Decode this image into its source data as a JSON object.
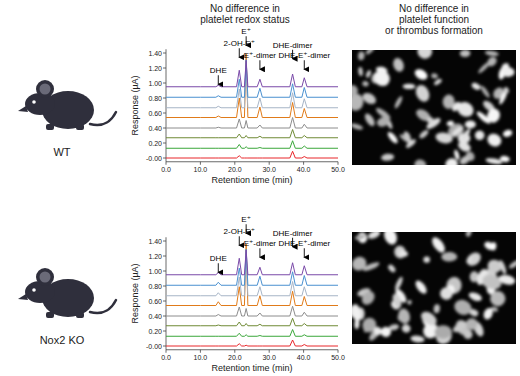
{
  "headers": [
    [
      "No difference in",
      "platelet redox status"
    ],
    [
      "No difference in",
      "platelet function",
      "or thrombus formation"
    ]
  ],
  "row_labels": [
    "WT",
    "Nox2 KO"
  ],
  "chart_data": [
    {
      "type": "line",
      "x_label": "Retention time (min)",
      "y_label": "Response (µA)",
      "xlim": [
        0,
        50
      ],
      "ylim": [
        -0.05,
        1.45
      ],
      "xticks": [
        {
          "value": 0,
          "label": "0.0"
        },
        {
          "value": 10,
          "label": "10.0"
        },
        {
          "value": 20,
          "label": "20.0"
        },
        {
          "value": 30,
          "label": "30.0"
        },
        {
          "value": 40,
          "label": "40.0"
        },
        {
          "value": 50,
          "label": "50.0"
        }
      ],
      "yticks": [
        {
          "value": 0,
          "label": "-0.00"
        },
        {
          "value": 0.2,
          "label": "0.20"
        },
        {
          "value": 0.4,
          "label": "0.40"
        },
        {
          "value": 0.6,
          "label": "0.60"
        },
        {
          "value": 0.8,
          "label": "0.80"
        },
        {
          "value": 1.0,
          "label": "1.00"
        },
        {
          "value": 1.2,
          "label": "1.20"
        },
        {
          "value": 1.4,
          "label": "1.40"
        }
      ],
      "x": [
        0,
        10,
        14.5,
        15.2,
        16,
        20.5,
        21.3,
        22,
        22.8,
        23.3,
        23.8,
        26.5,
        27.3,
        28,
        36,
        36.8,
        37.6,
        39.5,
        40.2,
        41,
        50
      ],
      "series": [
        {
          "color": "#e8262a",
          "values": [
            0,
            0,
            0,
            0,
            0,
            0,
            0.03,
            0,
            0,
            0,
            0,
            0,
            0,
            0,
            0,
            0.09,
            0,
            0,
            0.02,
            0,
            0
          ]
        },
        {
          "color": "#3aa63a",
          "values": [
            0.13,
            0.13,
            0.13,
            0.13,
            0.13,
            0.13,
            0.18,
            0.13,
            0.13,
            0.15,
            0.13,
            0.13,
            0.14,
            0.13,
            0.13,
            0.23,
            0.13,
            0.13,
            0.16,
            0.13,
            0.13
          ]
        },
        {
          "color": "#6f8a35",
          "values": [
            0.27,
            0.27,
            0.27,
            0.27,
            0.27,
            0.27,
            0.32,
            0.27,
            0.27,
            0.3,
            0.27,
            0.27,
            0.29,
            0.27,
            0.27,
            0.38,
            0.27,
            0.27,
            0.3,
            0.27,
            0.27
          ]
        },
        {
          "color": "#8c8c8c",
          "values": [
            0.4,
            0.4,
            0.4,
            0.41,
            0.4,
            0.4,
            0.52,
            0.4,
            0.4,
            0.5,
            0.4,
            0.4,
            0.44,
            0.4,
            0.4,
            0.54,
            0.4,
            0.4,
            0.45,
            0.4,
            0.4
          ]
        },
        {
          "color": "#e07b1a",
          "values": [
            0.54,
            0.54,
            0.54,
            0.56,
            0.54,
            0.54,
            0.8,
            0.54,
            0.54,
            1.39,
            0.54,
            0.54,
            0.68,
            0.54,
            0.54,
            0.74,
            0.54,
            0.54,
            0.66,
            0.54,
            0.54
          ]
        },
        {
          "color": "#a6b4c6",
          "values": [
            0.67,
            0.67,
            0.67,
            0.69,
            0.67,
            0.67,
            0.92,
            0.67,
            0.67,
            1.22,
            0.67,
            0.67,
            0.8,
            0.67,
            0.67,
            0.87,
            0.67,
            0.67,
            0.79,
            0.67,
            0.67
          ]
        },
        {
          "color": "#4a90d0",
          "values": [
            0.81,
            0.81,
            0.81,
            0.83,
            0.81,
            0.81,
            1.05,
            0.81,
            0.81,
            1.31,
            0.81,
            0.81,
            0.93,
            0.81,
            0.81,
            0.99,
            0.81,
            0.81,
            0.94,
            0.81,
            0.81
          ]
        },
        {
          "color": "#7a4aa8",
          "values": [
            0.95,
            0.95,
            0.95,
            0.97,
            0.95,
            0.95,
            1.17,
            0.95,
            0.95,
            1.3,
            0.95,
            0.95,
            1.05,
            0.95,
            0.95,
            1.12,
            0.95,
            0.95,
            1.07,
            0.95,
            0.95
          ]
        }
      ],
      "annotations": [
        {
          "text": "DHE",
          "x": 15.2,
          "y": 0.97
        },
        {
          "text": "2-OH-E⁺",
          "x": 21.3,
          "y": 1.33
        },
        {
          "text": "E⁺",
          "x": 23.3,
          "y": 1.49
        },
        {
          "text": "E⁺-dimer",
          "x": 27.3,
          "y": 1.17
        },
        {
          "text": "DHE-dimer",
          "x": 36.8,
          "y": 1.31
        },
        {
          "text": "DHE-E⁺-dimer",
          "x": 40.2,
          "y": 1.17
        }
      ]
    },
    {
      "type": "line",
      "x_label": "Retention time (min)",
      "y_label": "Response (µA)",
      "xlim": [
        0,
        50
      ],
      "ylim": [
        -0.05,
        1.45
      ],
      "xticks": [
        {
          "value": 0,
          "label": "0.0"
        },
        {
          "value": 10,
          "label": "10.0"
        },
        {
          "value": 20,
          "label": "20.0"
        },
        {
          "value": 30,
          "label": "30.0"
        },
        {
          "value": 40,
          "label": "40.0"
        },
        {
          "value": 50,
          "label": "50.0"
        }
      ],
      "yticks": [
        {
          "value": 0,
          "label": "-0.00"
        },
        {
          "value": 0.2,
          "label": "0.20"
        },
        {
          "value": 0.4,
          "label": "0.40"
        },
        {
          "value": 0.6,
          "label": "0.60"
        },
        {
          "value": 0.8,
          "label": "0.80"
        },
        {
          "value": 1.0,
          "label": "1.00"
        },
        {
          "value": 1.2,
          "label": "1.20"
        },
        {
          "value": 1.4,
          "label": "1.40"
        }
      ],
      "x": [
        0,
        10,
        14.5,
        15.2,
        16,
        20.5,
        21.3,
        22,
        22.8,
        23.3,
        23.8,
        26.5,
        27.3,
        28,
        36,
        36.8,
        37.6,
        39.5,
        40.2,
        41,
        50
      ],
      "series": [
        {
          "color": "#e8262a",
          "values": [
            0,
            0,
            0,
            0,
            0,
            0,
            0.03,
            0,
            0,
            0.01,
            0,
            0,
            0,
            0,
            0,
            0.08,
            0,
            0,
            0.02,
            0,
            0
          ]
        },
        {
          "color": "#3aa63a",
          "values": [
            0.13,
            0.13,
            0.13,
            0.13,
            0.13,
            0.13,
            0.17,
            0.13,
            0.13,
            0.15,
            0.13,
            0.13,
            0.14,
            0.13,
            0.13,
            0.22,
            0.13,
            0.13,
            0.15,
            0.13,
            0.13
          ]
        },
        {
          "color": "#6f8a35",
          "values": [
            0.27,
            0.27,
            0.27,
            0.28,
            0.27,
            0.27,
            0.32,
            0.27,
            0.27,
            0.3,
            0.27,
            0.27,
            0.29,
            0.27,
            0.27,
            0.37,
            0.27,
            0.27,
            0.3,
            0.27,
            0.27
          ]
        },
        {
          "color": "#8c8c8c",
          "values": [
            0.4,
            0.4,
            0.4,
            0.42,
            0.4,
            0.4,
            0.52,
            0.4,
            0.4,
            0.5,
            0.4,
            0.4,
            0.44,
            0.4,
            0.4,
            0.53,
            0.4,
            0.4,
            0.45,
            0.4,
            0.4
          ]
        },
        {
          "color": "#e07b1a",
          "values": [
            0.54,
            0.54,
            0.54,
            0.59,
            0.54,
            0.54,
            0.79,
            0.54,
            0.54,
            1.36,
            0.54,
            0.54,
            0.67,
            0.54,
            0.54,
            0.73,
            0.54,
            0.54,
            0.66,
            0.54,
            0.54
          ]
        },
        {
          "color": "#a6b4c6",
          "values": [
            0.67,
            0.67,
            0.67,
            0.71,
            0.67,
            0.67,
            0.92,
            0.67,
            0.67,
            1.22,
            0.67,
            0.67,
            0.79,
            0.67,
            0.67,
            0.86,
            0.67,
            0.67,
            0.79,
            0.67,
            0.67
          ]
        },
        {
          "color": "#4a90d0",
          "values": [
            0.81,
            0.81,
            0.81,
            0.85,
            0.81,
            0.81,
            1.04,
            0.81,
            0.81,
            1.29,
            0.81,
            0.81,
            0.93,
            0.81,
            0.81,
            0.99,
            0.81,
            0.81,
            0.94,
            0.81,
            0.81
          ]
        },
        {
          "color": "#7a4aa8",
          "values": [
            0.95,
            0.95,
            0.95,
            0.98,
            0.95,
            0.95,
            1.17,
            0.95,
            0.95,
            1.28,
            0.95,
            0.95,
            1.05,
            0.95,
            0.95,
            1.11,
            0.95,
            0.95,
            1.07,
            0.95,
            0.95
          ]
        }
      ],
      "annotations": [
        {
          "text": "DHE",
          "x": 15.2,
          "y": 0.97
        },
        {
          "text": "2-OH-E⁺",
          "x": 21.3,
          "y": 1.33
        },
        {
          "text": "E⁺",
          "x": 23.3,
          "y": 1.49
        },
        {
          "text": "E⁺-dimer",
          "x": 27.3,
          "y": 1.17
        },
        {
          "text": "DHE-dimer",
          "x": 36.8,
          "y": 1.31
        },
        {
          "text": "DHE-E⁺-dimer",
          "x": 40.2,
          "y": 1.17
        }
      ]
    }
  ]
}
